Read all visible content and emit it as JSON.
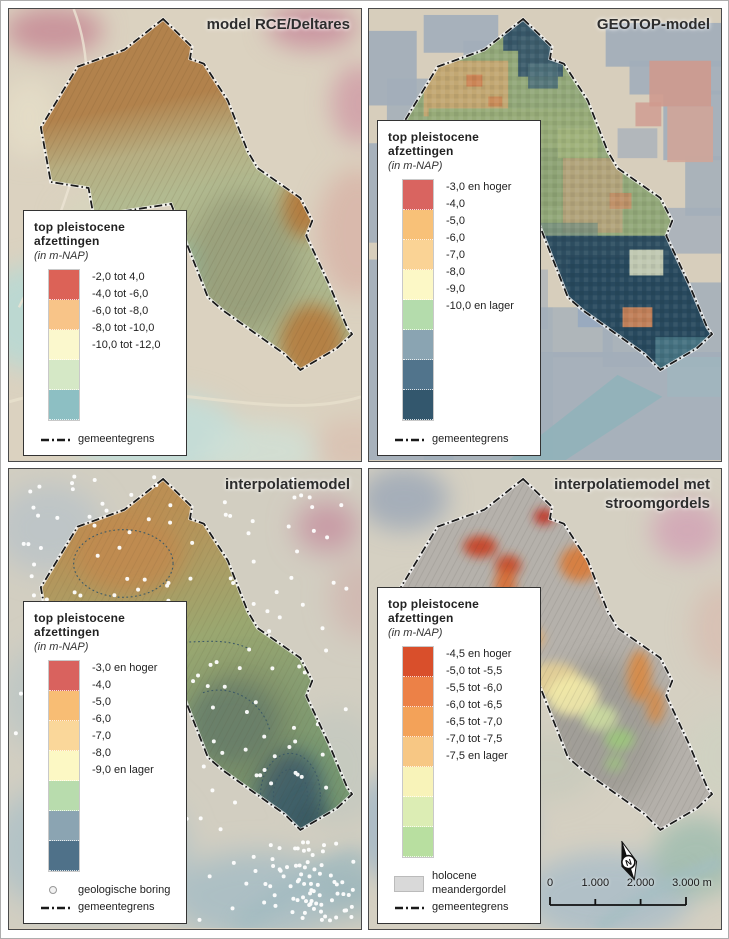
{
  "figure": {
    "kind": "four-panel geological map comparison",
    "boundary_style_color": "#1a1a1a"
  },
  "panels": [
    {
      "id": "rce-deltares",
      "title": "model RCE/Deltares",
      "legend": {
        "title": "top pleistocene afzettingen",
        "subtitle": "(in m-NAP)",
        "classes": [
          {
            "label": "-2,0 tot 4,0",
            "color": "#dc6257"
          },
          {
            "label": "-4,0 tot -6,0",
            "color": "#f8c488"
          },
          {
            "label": "-6,0 tot -8,0",
            "color": "#fbf8cd"
          },
          {
            "label": "-8,0 tot -10,0",
            "color": "#d5e8c6"
          },
          {
            "label": "-10,0 tot -12,0",
            "color": "#8dbfc3"
          }
        ],
        "extras": [
          {
            "type": "line",
            "label": "gemeentegrens"
          }
        ]
      }
    },
    {
      "id": "geotop",
      "title": "GEOTOP-model",
      "legend": {
        "title": "top pleistocene afzettingen",
        "subtitle": "(in m-NAP)",
        "classes": [
          {
            "label": "-3,0 en hoger",
            "color": "#d96460"
          },
          {
            "label": "-4,0",
            "color": "#f8c178"
          },
          {
            "label": "-5,0",
            "color": "#fad395"
          },
          {
            "label": "-6,0",
            "color": "#fcf8c6"
          },
          {
            "label": "-7,0",
            "color": "#b4dcac"
          },
          {
            "label": "-8,0",
            "color": "#8aa4b2"
          },
          {
            "label": "-9,0",
            "color": "#51748c"
          },
          {
            "label": "-10,0 en lager",
            "color": "#33576d"
          }
        ],
        "extras": [
          {
            "type": "line",
            "label": "gemeentegrens"
          }
        ]
      }
    },
    {
      "id": "interpolatiemodel",
      "title": "interpolatiemodel",
      "legend": {
        "title": "top pleistocene afzettingen",
        "subtitle": "(in m-NAP)",
        "classes": [
          {
            "label": "-3,0 en hoger",
            "color": "#d9625e"
          },
          {
            "label": "-4,0",
            "color": "#f8bd74"
          },
          {
            "label": "-5,0",
            "color": "#fad79a"
          },
          {
            "label": "-6,0",
            "color": "#fcf8c4"
          },
          {
            "label": "-7,0",
            "color": "#b8dcad"
          },
          {
            "label": "-8,0",
            "color": "#8ba4b2"
          },
          {
            "label": "-9,0 en lager",
            "color": "#4f7189"
          }
        ],
        "extras": [
          {
            "type": "dot",
            "label": "geologische boring"
          },
          {
            "type": "line",
            "label": "gemeentegrens"
          }
        ]
      }
    },
    {
      "id": "interpolatiemodel-stroomgordels",
      "title": "interpolatiemodel met stroomgordels",
      "north_label": "N",
      "scalebar": {
        "labels": [
          "0",
          "1.000",
          "2.000",
          "3.000 m"
        ]
      },
      "legend": {
        "title": "top pleistocene afzettingen",
        "subtitle": "(in m-NAP)",
        "classes": [
          {
            "label": "-4,5 en hoger",
            "color": "#d94f2b"
          },
          {
            "label": "-5,0 tot -5,5",
            "color": "#ec8147"
          },
          {
            "label": "-5,5 tot -6,0",
            "color": "#f3a259"
          },
          {
            "label": "-6,0 tot -6,5",
            "color": "#f7c784"
          },
          {
            "label": "-6,5 tot -7,0",
            "color": "#f8f3b9"
          },
          {
            "label": "-7,0 tot -7,5",
            "color": "#dcedb4"
          },
          {
            "label": "-7,5 en lager",
            "color": "#b8dfa0"
          }
        ],
        "extras": [
          {
            "type": "box",
            "label": "holocene\nmeandergordel",
            "color": "#d9d9d9"
          },
          {
            "type": "line",
            "label": "gemeentegrens"
          }
        ]
      }
    }
  ]
}
